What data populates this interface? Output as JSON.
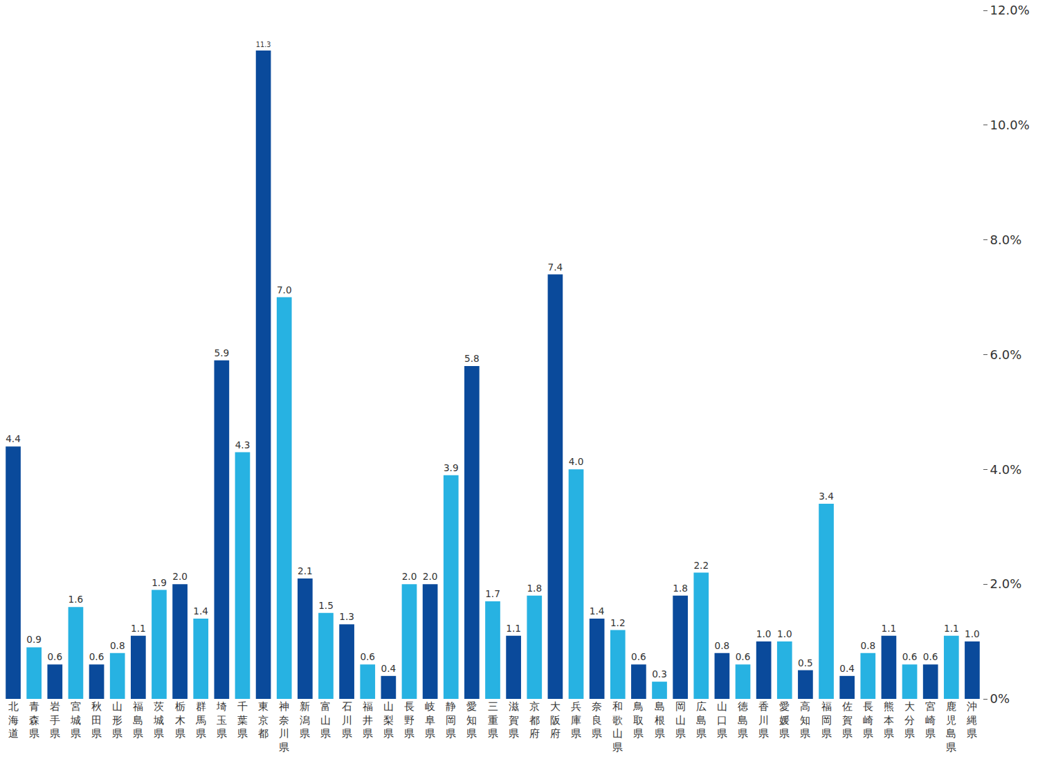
{
  "chart_data": {
    "type": "bar",
    "categories": [
      "北海道",
      "青森県",
      "岩手県",
      "宮城県",
      "秋田県",
      "山形県",
      "福島県",
      "茨城県",
      "栃木県",
      "群馬県",
      "埼玉県",
      "千葉県",
      "東京都",
      "神奈川県",
      "新潟県",
      "富山県",
      "石川県",
      "福井県",
      "山梨県",
      "長野県",
      "岐阜県",
      "静岡県",
      "愛知県",
      "三重県",
      "滋賀県",
      "京都府",
      "大阪府",
      "兵庫県",
      "奈良県",
      "和歌山県",
      "鳥取県",
      "島根県",
      "岡山県",
      "広島県",
      "山口県",
      "徳島県",
      "香川県",
      "愛媛県",
      "高知県",
      "福岡県",
      "佐賀県",
      "長崎県",
      "熊本県",
      "大分県",
      "宮崎県",
      "鹿児島県",
      "沖縄県"
    ],
    "values": [
      4.4,
      0.9,
      0.6,
      1.6,
      0.6,
      0.8,
      1.1,
      1.9,
      2.0,
      1.4,
      5.9,
      4.3,
      11.3,
      7.0,
      2.1,
      1.5,
      1.3,
      0.6,
      0.4,
      2.0,
      2.0,
      3.9,
      5.8,
      1.7,
      1.1,
      1.8,
      7.4,
      4.0,
      1.4,
      1.2,
      0.6,
      0.3,
      1.8,
      2.2,
      0.8,
      0.6,
      1.0,
      1.0,
      0.5,
      3.4,
      0.4,
      0.8,
      1.1,
      0.6,
      0.6,
      1.1,
      1.0
    ],
    "value_labels": [
      "4.4",
      "0.9",
      "0.6",
      "1.6",
      "0.6",
      "0.8",
      "1.1",
      "1.9",
      "2.0",
      "1.4",
      "5.9",
      "4.3",
      "11.3",
      "7.0",
      "2.1",
      "1.5",
      "1.3",
      "0.6",
      "0.4",
      "2.0",
      "2.0",
      "3.9",
      "5.8",
      "1.7",
      "1.1",
      "1.8",
      "7.4",
      "4.0",
      "1.4",
      "1.2",
      "0.6",
      "0.3",
      "1.8",
      "2.2",
      "0.8",
      "0.6",
      "1.0",
      "1.0",
      "0.5",
      "3.4",
      "0.4",
      "0.8",
      "1.1",
      "0.6",
      "0.6",
      "1.1",
      "1.0"
    ],
    "colors": [
      "#0a4a9b",
      "#27b2e2",
      "#0a4a9b",
      "#27b2e2",
      "#0a4a9b",
      "#27b2e2",
      "#0a4a9b",
      "#27b2e2",
      "#0a4a9b",
      "#27b2e2",
      "#0a4a9b",
      "#27b2e2",
      "#0a4a9b",
      "#27b2e2",
      "#0a4a9b",
      "#27b2e2",
      "#0a4a9b",
      "#27b2e2",
      "#0a4a9b",
      "#27b2e2",
      "#0a4a9b",
      "#27b2e2",
      "#0a4a9b",
      "#27b2e2",
      "#0a4a9b",
      "#27b2e2",
      "#0a4a9b",
      "#27b2e2",
      "#0a4a9b",
      "#27b2e2",
      "#0a4a9b",
      "#27b2e2",
      "#0a4a9b",
      "#27b2e2",
      "#0a4a9b",
      "#27b2e2",
      "#0a4a9b",
      "#27b2e2",
      "#0a4a9b",
      "#27b2e2",
      "#0a4a9b",
      "#27b2e2",
      "#0a4a9b",
      "#27b2e2",
      "#0a4a9b",
      "#27b2e2",
      "#0a4a9b"
    ],
    "ylim": [
      0,
      12
    ],
    "yticks": [
      {
        "value": 0,
        "label": "0%"
      },
      {
        "value": 2,
        "label": "2.0%"
      },
      {
        "value": 4,
        "label": "4.0%"
      },
      {
        "value": 6,
        "label": "6.0%"
      },
      {
        "value": 8,
        "label": "8.0%"
      },
      {
        "value": 10,
        "label": "10.0%"
      },
      {
        "value": 12,
        "label": "12.0%"
      }
    ],
    "grid": false,
    "data_labels": true
  }
}
